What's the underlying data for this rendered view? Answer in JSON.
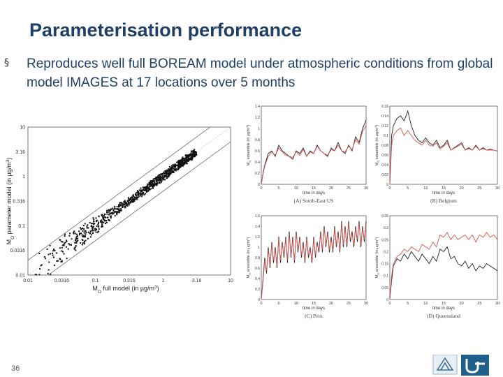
{
  "slide": {
    "title": "Parameterisation performance",
    "bullet": "Reproduces well full BOREAM model under atmospheric conditions from global model IMAGES at 17 locations over 5 months",
    "page_number": "36"
  },
  "colors": {
    "title": "#1f3f66",
    "text": "#1f3f66",
    "model_black": "#222222",
    "param_red": "#d9534f",
    "footer": "#1f5f8b"
  },
  "chart_data": [
    {
      "type": "scatter",
      "xlabel": "M",
      "xlabel_sub": "O",
      "xlabel_rest": " full model (in µg/m",
      "xlabel_sup": "3",
      "xlabel_end": ")",
      "ylabel": "M",
      "ylabel_sub": "O",
      "ylabel_rest": " parameter model (in µg/m",
      "ylabel_sup": "3",
      "ylabel_end": ")",
      "scale": "log",
      "xlim": [
        0.01,
        10
      ],
      "ylim": [
        0.01,
        10
      ],
      "xticks": [
        "0.01",
        "0.0316",
        "0.1",
        "0.316",
        "1",
        "3.16",
        "10"
      ],
      "yticks": [
        "0.01",
        "0.0316",
        "0.1",
        "0.316",
        "1",
        "3.16",
        "10"
      ],
      "points_note": "dense cloud along 1:1 line with ±factor-2 envelope lines",
      "envelope_factor": 2
    },
    {
      "type": "line",
      "caption": "(A) South-East US",
      "xlabel": "time in days",
      "ylabel": "M",
      "ylabel_sub": "O",
      "ylabel_rest": " ensemble (in µg/m",
      "ylabel_sup": "3",
      "ylabel_end": ")",
      "xlim": [
        0,
        30
      ],
      "ylim": [
        0,
        1.4
      ],
      "xticks": [
        "0",
        "5",
        "10",
        "15",
        "20",
        "25",
        "30"
      ],
      "yticks": [
        "0",
        "0.2",
        "0.4",
        "0.6",
        "0.8",
        "1",
        "1.2",
        "1.4"
      ],
      "series": [
        {
          "color": "#222222",
          "x": [
            0,
            0.5,
            1,
            2,
            3,
            4,
            5,
            6,
            7,
            8,
            9,
            10,
            11,
            12,
            13,
            14,
            15,
            16,
            17,
            18,
            19,
            20,
            21,
            22,
            23,
            24,
            25,
            26,
            27,
            28,
            29,
            30
          ],
          "y": [
            0,
            0.2,
            0.35,
            0.55,
            0.6,
            0.5,
            0.7,
            0.6,
            0.55,
            0.5,
            0.45,
            0.6,
            0.55,
            0.65,
            0.5,
            0.6,
            0.55,
            0.7,
            0.6,
            0.55,
            0.5,
            0.65,
            0.6,
            0.75,
            0.6,
            0.55,
            0.7,
            0.6,
            0.85,
            0.75,
            1.0,
            1.15
          ]
        },
        {
          "color": "#d9534f",
          "x": [
            0,
            0.5,
            1,
            2,
            3,
            4,
            5,
            6,
            7,
            8,
            9,
            10,
            11,
            12,
            13,
            14,
            15,
            16,
            17,
            18,
            19,
            20,
            21,
            22,
            23,
            24,
            25,
            26,
            27,
            28,
            29,
            30
          ],
          "y": [
            0,
            0.18,
            0.33,
            0.5,
            0.58,
            0.52,
            0.65,
            0.58,
            0.52,
            0.5,
            0.48,
            0.58,
            0.52,
            0.62,
            0.5,
            0.58,
            0.55,
            0.68,
            0.6,
            0.55,
            0.52,
            0.62,
            0.6,
            0.7,
            0.6,
            0.58,
            0.68,
            0.62,
            0.8,
            0.72,
            0.95,
            1.05
          ]
        }
      ]
    },
    {
      "type": "line",
      "caption": "(B) Belgium",
      "xlabel": "time in days",
      "ylabel": "M",
      "ylabel_sub": "O",
      "ylabel_rest": " ensemble (in µg/m",
      "ylabel_sup": "3",
      "ylabel_end": ")",
      "xlim": [
        0,
        30
      ],
      "ylim": [
        0,
        0.16
      ],
      "xticks": [
        "0",
        "5",
        "10",
        "15",
        "20",
        "25",
        "30"
      ],
      "yticks": [
        "0",
        "0.02",
        "0.04",
        "0.06",
        "0.08",
        "0.1",
        "0.12",
        "0.14",
        "0.16"
      ],
      "series": [
        {
          "color": "#222222",
          "x": [
            0,
            0.5,
            1,
            2,
            3,
            4,
            5,
            6,
            7,
            8,
            9,
            10,
            11,
            12,
            13,
            14,
            15,
            16,
            17,
            18,
            19,
            20,
            21,
            22,
            23,
            24,
            25,
            26,
            27,
            28,
            29,
            30
          ],
          "y": [
            0,
            0.1,
            0.12,
            0.135,
            0.14,
            0.13,
            0.15,
            0.12,
            0.1,
            0.09,
            0.085,
            0.095,
            0.085,
            0.08,
            0.09,
            0.075,
            0.08,
            0.09,
            0.07,
            0.075,
            0.08,
            0.085,
            0.07,
            0.075,
            0.07,
            0.08,
            0.07,
            0.075,
            0.07,
            0.072,
            0.07,
            0.068
          ]
        },
        {
          "color": "#d9534f",
          "x": [
            0,
            0.5,
            1,
            2,
            3,
            4,
            5,
            6,
            7,
            8,
            9,
            10,
            11,
            12,
            13,
            14,
            15,
            16,
            17,
            18,
            19,
            20,
            21,
            22,
            23,
            24,
            25,
            26,
            27,
            28,
            29,
            30
          ],
          "y": [
            0,
            0.08,
            0.1,
            0.11,
            0.115,
            0.1,
            0.11,
            0.1,
            0.09,
            0.085,
            0.08,
            0.09,
            0.08,
            0.078,
            0.085,
            0.072,
            0.078,
            0.085,
            0.07,
            0.074,
            0.078,
            0.082,
            0.07,
            0.073,
            0.07,
            0.078,
            0.07,
            0.073,
            0.07,
            0.07,
            0.07,
            0.068
          ]
        }
      ]
    },
    {
      "type": "line",
      "caption": "(C) Peru",
      "xlabel": "time in days",
      "ylabel": "M",
      "ylabel_sub": "O",
      "ylabel_rest": " ensemble (in µg/m",
      "ylabel_sup": "3",
      "ylabel_end": ")",
      "xlim": [
        0,
        30
      ],
      "ylim": [
        0,
        1.6
      ],
      "xticks": [
        "0",
        "5",
        "10",
        "15",
        "20",
        "25",
        "30"
      ],
      "yticks": [
        "0",
        "0.2",
        "0.4",
        "0.6",
        "0.8",
        "1",
        "1.2",
        "1.4",
        "1.6"
      ],
      "series": [
        {
          "color": "#222222",
          "x": [
            0,
            0.5,
            1,
            1.5,
            2,
            2.5,
            3,
            3.5,
            4,
            4.5,
            5,
            5.5,
            6,
            6.5,
            7,
            7.5,
            8,
            8.5,
            9,
            9.5,
            10,
            10.5,
            11,
            11.5,
            12,
            12.5,
            13,
            13.5,
            14,
            14.5,
            15,
            15.5,
            16,
            16.5,
            17,
            17.5,
            18,
            18.5,
            19,
            19.5,
            20,
            20.5,
            21,
            21.5,
            22,
            22.5,
            23,
            23.5,
            24,
            24.5,
            25,
            25.5,
            26,
            26.5,
            27,
            27.5,
            28,
            28.5,
            29,
            29.5,
            30
          ],
          "y": [
            0,
            0.4,
            0.8,
            0.5,
            1.0,
            0.6,
            1.1,
            0.7,
            1.0,
            0.6,
            1.2,
            0.7,
            1.1,
            0.8,
            1.2,
            0.7,
            1.3,
            0.8,
            1.2,
            0.7,
            1.3,
            0.9,
            1.2,
            0.8,
            1.1,
            0.7,
            1.2,
            0.8,
            1.0,
            0.7,
            1.2,
            0.8,
            1.1,
            0.9,
            1.3,
            0.9,
            1.4,
            1.0,
            1.3,
            0.9,
            1.2,
            0.9,
            1.4,
            1.0,
            1.3,
            0.9,
            1.5,
            1.0,
            1.4,
            1.0,
            1.5,
            1.1,
            1.3,
            1.0,
            1.4,
            1.1,
            1.5,
            1.0,
            1.4,
            1.1,
            1.5
          ]
        },
        {
          "color": "#d9534f",
          "x": [
            0,
            0.5,
            1,
            1.5,
            2,
            2.5,
            3,
            3.5,
            4,
            4.5,
            5,
            5.5,
            6,
            6.5,
            7,
            7.5,
            8,
            8.5,
            9,
            9.5,
            10,
            10.5,
            11,
            11.5,
            12,
            12.5,
            13,
            13.5,
            14,
            14.5,
            15,
            15.5,
            16,
            16.5,
            17,
            17.5,
            18,
            18.5,
            19,
            19.5,
            20,
            20.5,
            21,
            21.5,
            22,
            22.5,
            23,
            23.5,
            24,
            24.5,
            25,
            25.5,
            26,
            26.5,
            27,
            27.5,
            28,
            28.5,
            29,
            29.5,
            30
          ],
          "y": [
            0,
            0.35,
            0.75,
            0.55,
            0.95,
            0.65,
            1.05,
            0.75,
            0.95,
            0.65,
            1.15,
            0.75,
            1.05,
            0.85,
            1.15,
            0.75,
            1.25,
            0.85,
            1.15,
            0.75,
            1.25,
            0.95,
            1.15,
            0.85,
            1.05,
            0.75,
            1.15,
            0.85,
            0.95,
            0.75,
            1.15,
            0.85,
            1.05,
            0.95,
            1.25,
            0.95,
            1.35,
            1.05,
            1.25,
            0.95,
            1.15,
            0.95,
            1.35,
            1.05,
            1.25,
            0.95,
            1.45,
            1.05,
            1.35,
            1.05,
            1.45,
            1.15,
            1.25,
            1.05,
            1.35,
            1.15,
            1.45,
            1.05,
            1.35,
            1.15,
            1.45
          ]
        }
      ]
    },
    {
      "type": "line",
      "caption": "(D) Queensland",
      "xlabel": "time in days",
      "ylabel": "M",
      "ylabel_sub": "O",
      "ylabel_rest": " ensemble (in µg/m",
      "ylabel_sup": "3",
      "ylabel_end": ")",
      "xlim": [
        0,
        30
      ],
      "ylim": [
        0,
        0.35
      ],
      "xticks": [
        "0",
        "5",
        "10",
        "15",
        "20",
        "25",
        "30"
      ],
      "yticks": [
        "0",
        "0.05",
        "0.1",
        "0.15",
        "0.2",
        "0.25",
        "0.3",
        "0.35"
      ],
      "series": [
        {
          "color": "#222222",
          "x": [
            0,
            0.5,
            1,
            2,
            3,
            4,
            5,
            6,
            7,
            8,
            9,
            10,
            11,
            12,
            13,
            14,
            15,
            16,
            17,
            18,
            19,
            20,
            21,
            22,
            23,
            24,
            25,
            26,
            27,
            28,
            29,
            30
          ],
          "y": [
            0,
            0.08,
            0.14,
            0.17,
            0.16,
            0.19,
            0.17,
            0.2,
            0.18,
            0.16,
            0.19,
            0.17,
            0.15,
            0.18,
            0.16,
            0.21,
            0.2,
            0.22,
            0.17,
            0.18,
            0.15,
            0.14,
            0.16,
            0.13,
            0.15,
            0.12,
            0.14,
            0.13,
            0.15,
            0.14,
            0.13,
            0.12
          ]
        },
        {
          "color": "#d9534f",
          "x": [
            0,
            0.5,
            1,
            2,
            3,
            4,
            5,
            6,
            7,
            8,
            9,
            10,
            11,
            12,
            13,
            14,
            15,
            16,
            17,
            18,
            19,
            20,
            21,
            22,
            23,
            24,
            25,
            26,
            27,
            28,
            29,
            30
          ],
          "y": [
            0,
            0.1,
            0.15,
            0.18,
            0.19,
            0.21,
            0.2,
            0.22,
            0.21,
            0.2,
            0.23,
            0.22,
            0.21,
            0.24,
            0.22,
            0.27,
            0.26,
            0.28,
            0.25,
            0.27,
            0.25,
            0.26,
            0.27,
            0.25,
            0.27,
            0.24,
            0.27,
            0.26,
            0.28,
            0.26,
            0.27,
            0.25
          ]
        }
      ]
    }
  ]
}
